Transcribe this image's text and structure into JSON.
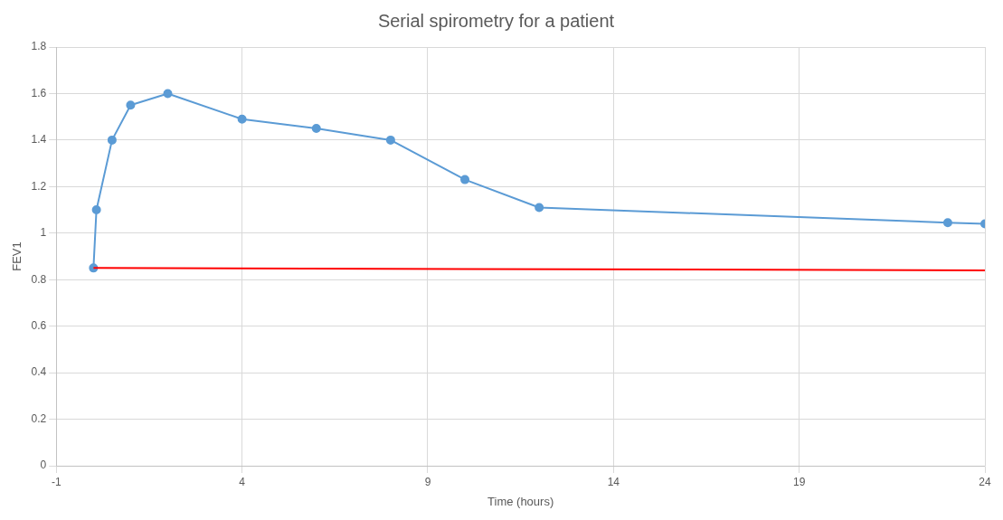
{
  "chart_data": {
    "type": "line",
    "title": "Serial spirometry for a patient",
    "xlabel": "Time (hours)",
    "ylabel": "FEV1",
    "xlim": [
      -1,
      24
    ],
    "xticks": [
      -1,
      4,
      9,
      14,
      19,
      24
    ],
    "ylim": [
      0,
      1.8
    ],
    "yticks": [
      0,
      0.2,
      0.4,
      0.6,
      0.8,
      1,
      1.2,
      1.4,
      1.6,
      1.8
    ],
    "grid": true,
    "legend": false,
    "marker": "circle",
    "line_style": "solid",
    "series": [
      {
        "color": "#ff0000",
        "marker": "none",
        "x": [
          0,
          24
        ],
        "values": [
          0.85,
          0.84
        ]
      },
      {
        "color": "#5b9bd5",
        "x": [
          0,
          0.08,
          0.5,
          1,
          2,
          4,
          6,
          8,
          10,
          12,
          23,
          24
        ],
        "values": [
          0.85,
          1.1,
          1.4,
          1.55,
          1.6,
          1.49,
          1.45,
          1.4,
          1.23,
          1.11,
          1.045,
          1.04
        ]
      }
    ]
  }
}
